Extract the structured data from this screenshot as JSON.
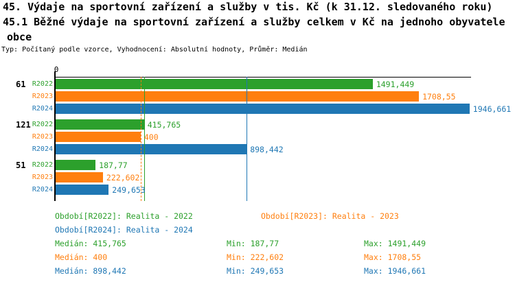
{
  "header": {
    "line1": "45. Výdaje na sportovní zařízení a služby v tis. Kč (k 31.12. sledovaného roku)",
    "line2": "45.1 Běžné výdaje na sportovní zařízení a služby celkem v Kč na jednoho obyvatele",
    "line3": "obce",
    "meta": "Typ: Počítaný podle vzorce, Vyhodnocení: Absolutní hodnoty, Průměr: Medián"
  },
  "colors": {
    "r2022": "#2ca02c",
    "r2023": "#ff7f0e",
    "r2024": "#1f77b4",
    "axis": "#000000",
    "background": "#ffffff"
  },
  "chart_data": {
    "type": "bar",
    "orientation": "horizontal",
    "title": "45. Výdaje na sportovní zařízení a služby v tis. Kč (k 31.12. sledovaného roku)",
    "subtitle": "45.1 Běžné výdaje na sportovní zařízení a služby celkem v Kč na jednoho obyvatele obce",
    "x_axis": {
      "tick_label": "0",
      "xlim": [
        0,
        1950
      ],
      "grid": false
    },
    "categories": [
      "61",
      "121",
      "51"
    ],
    "series": [
      {
        "name": "R2022",
        "color": "#2ca02c",
        "legend": "Období[R2022]: Realita - 2022",
        "median": 415.765,
        "min": 187.77,
        "max": 1491.449
      },
      {
        "name": "R2023",
        "color": "#ff7f0e",
        "legend": "Období[R2023]: Realita - 2023",
        "median": 400,
        "min": 222.602,
        "max": 1708.55
      },
      {
        "name": "R2024",
        "color": "#1f77b4",
        "legend": "Období[R2024]: Realita - 2024",
        "median": 898.442,
        "min": 249.653,
        "max": 1946.661
      }
    ],
    "groups": [
      {
        "category": "61",
        "values": [
          1491.449,
          1708.55,
          1946.661
        ],
        "labels": [
          "1491,449",
          "1708,55",
          "1946,661"
        ]
      },
      {
        "category": "121",
        "values": [
          415.765,
          400,
          898.442
        ],
        "labels": [
          "415,765",
          "400",
          "898,442"
        ]
      },
      {
        "category": "51",
        "values": [
          187.77,
          222.602,
          249.653
        ],
        "labels": [
          "187,77",
          "222,602",
          "249,653"
        ]
      }
    ],
    "median_lines": [
      {
        "series": "R2022",
        "value": 415.765,
        "style": "solid"
      },
      {
        "series": "R2023",
        "value": 400,
        "style": "dashed"
      },
      {
        "series": "R2024",
        "value": 898.442,
        "style": "solid"
      }
    ]
  },
  "stats": {
    "rows": [
      {
        "series": "R2022",
        "median": "Medián: 415,765",
        "min": "Min: 187,77",
        "max": "Max: 1491,449"
      },
      {
        "series": "R2023",
        "median": "Medián: 400",
        "min": "Min: 222,602",
        "max": "Max: 1708,55"
      },
      {
        "series": "R2024",
        "median": "Medián: 898,442",
        "min": "Min: 249,653",
        "max": "Max: 1946,661"
      }
    ]
  }
}
